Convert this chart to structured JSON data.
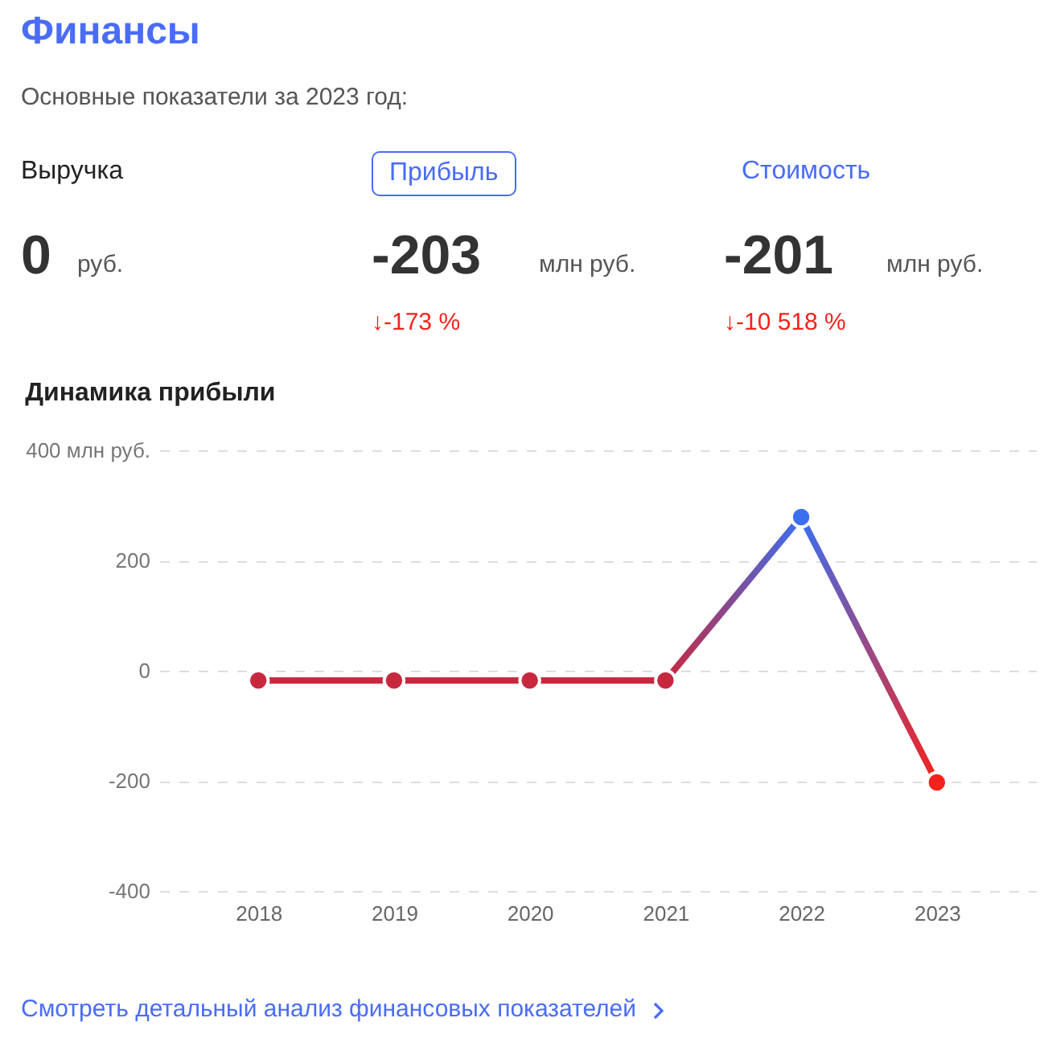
{
  "chart_data": {
    "type": "line",
    "title": "Динамика прибыли",
    "categories": [
      "2018",
      "2019",
      "2020",
      "2021",
      "2022",
      "2023"
    ],
    "series": [
      {
        "colors": [
          "#c8283e",
          "#c8283e",
          "#c8283e",
          "#c8283e",
          "#3b6ff0",
          "#f5221c"
        ],
        "values": [
          -18,
          -18,
          -18,
          -18,
          279,
          -203
        ]
      }
    ],
    "ylim": [
      -400,
      400
    ],
    "yticks": [
      -400,
      -200,
      0,
      200,
      {
        "value": 400,
        "label": "400 млн руб."
      }
    ],
    "grid": "y",
    "marker": "circle",
    "annotations": [
      "Финансы",
      "Основные показатели за 2023 год:",
      "Выручка",
      "0",
      "руб.",
      "Прибыль",
      "-203",
      "млн руб.",
      "↓-173 %",
      "Стоимость",
      "-201",
      "млн руб.",
      "↓-10 518 %",
      "Смотреть детальный анализ финансовых показателей"
    ]
  }
}
